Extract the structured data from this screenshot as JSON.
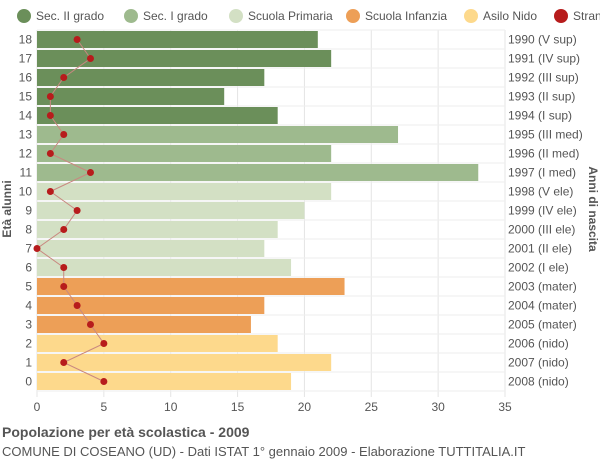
{
  "chart_data": {
    "type": "bar",
    "orientation": "horizontal",
    "title": "Popolazione per età scolastica - 2009",
    "subtitle": "COMUNE DI COSEANO (UD) - Dati ISTAT 1° gennaio 2009 - Elaborazione TUTTITALIA.IT",
    "ylabel": "Età alunni",
    "ylabel_right": "Anni di nascita",
    "xlim": [
      0,
      35
    ],
    "x_ticks": [
      0,
      5,
      10,
      15,
      20,
      25,
      30,
      35
    ],
    "grid": true,
    "legend_position": "top",
    "legend": [
      {
        "name": "Sec. II grado",
        "color": "#6b8f5a"
      },
      {
        "name": "Sec. I grado",
        "color": "#9eba8e"
      },
      {
        "name": "Scuola Primaria",
        "color": "#d3e0c4"
      },
      {
        "name": "Scuola Infanzia",
        "color": "#ed9f57"
      },
      {
        "name": "Asilo Nido",
        "color": "#fdd98c"
      },
      {
        "name": "Stranieri",
        "color": "#b71c1c"
      }
    ],
    "rows": [
      {
        "age": "18",
        "birth": "1990 (V sup)",
        "value": 21,
        "foreign": 3,
        "group": 0
      },
      {
        "age": "17",
        "birth": "1991 (IV sup)",
        "value": 22,
        "foreign": 4,
        "group": 0
      },
      {
        "age": "16",
        "birth": "1992 (III sup)",
        "value": 17,
        "foreign": 2,
        "group": 0
      },
      {
        "age": "15",
        "birth": "1993 (II sup)",
        "value": 14,
        "foreign": 1,
        "group": 0
      },
      {
        "age": "14",
        "birth": "1994 (I sup)",
        "value": 18,
        "foreign": 1,
        "group": 0
      },
      {
        "age": "13",
        "birth": "1995 (III med)",
        "value": 27,
        "foreign": 2,
        "group": 1
      },
      {
        "age": "12",
        "birth": "1996 (II med)",
        "value": 22,
        "foreign": 1,
        "group": 1
      },
      {
        "age": "11",
        "birth": "1997 (I med)",
        "value": 33,
        "foreign": 4,
        "group": 1
      },
      {
        "age": "10",
        "birth": "1998 (V ele)",
        "value": 22,
        "foreign": 1,
        "group": 2
      },
      {
        "age": "9",
        "birth": "1999 (IV ele)",
        "value": 20,
        "foreign": 3,
        "group": 2
      },
      {
        "age": "8",
        "birth": "2000 (III ele)",
        "value": 18,
        "foreign": 2,
        "group": 2
      },
      {
        "age": "7",
        "birth": "2001 (II ele)",
        "value": 17,
        "foreign": 0,
        "group": 2
      },
      {
        "age": "6",
        "birth": "2002 (I ele)",
        "value": 19,
        "foreign": 2,
        "group": 2
      },
      {
        "age": "5",
        "birth": "2003 (mater)",
        "value": 23,
        "foreign": 2,
        "group": 3
      },
      {
        "age": "4",
        "birth": "2004 (mater)",
        "value": 17,
        "foreign": 3,
        "group": 3
      },
      {
        "age": "3",
        "birth": "2005 (mater)",
        "value": 16,
        "foreign": 4,
        "group": 3
      },
      {
        "age": "2",
        "birth": "2006 (nido)",
        "value": 18,
        "foreign": 5,
        "group": 4
      },
      {
        "age": "1",
        "birth": "2007 (nido)",
        "value": 22,
        "foreign": 2,
        "group": 4
      },
      {
        "age": "0",
        "birth": "2008 (nido)",
        "value": 19,
        "foreign": 5,
        "group": 4
      }
    ]
  }
}
